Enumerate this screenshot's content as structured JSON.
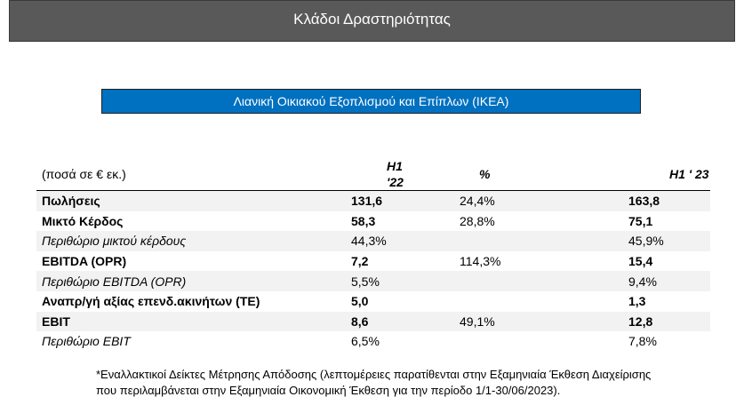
{
  "header": {
    "title": "Κλάδοι Δραστηριότητας"
  },
  "section": {
    "title": "Λιανική Οικιακού Εξοπλισμού και Επίπλων (IKEA)"
  },
  "table": {
    "columns": [
      "(ποσά σε € εκ.)",
      "H1 '22",
      "%",
      "H1 ' 23"
    ],
    "rows": [
      {
        "label": "Πωλήσεις",
        "h1_22": "131,6",
        "pct": "24,4%",
        "h1_23": "163,8"
      },
      {
        "label": "Μικτό Κέρδος",
        "h1_22": "58,3",
        "pct": "28,8%",
        "h1_23": "75,1"
      },
      {
        "label": "Περιθώριο μικτού κέρδους",
        "h1_22": "44,3%",
        "pct": "",
        "h1_23": "45,9%"
      },
      {
        "label": "EBITDA (OPR)",
        "h1_22": "7,2",
        "pct": "114,3%",
        "h1_23": "15,4"
      },
      {
        "label": "Περιθώριο EBITDA (OPR)",
        "h1_22": "5,5%",
        "pct": "",
        "h1_23": "9,4%"
      },
      {
        "label": "Αναπρ/γή αξίας επενδ.ακινήτων (ΤΕ)",
        "h1_22": "5,0",
        "pct": "",
        "h1_23": "1,3"
      },
      {
        "label": "EBIT",
        "h1_22": "8,6",
        "pct": "49,1%",
        "h1_23": "12,8"
      },
      {
        "label": "Περιθώριο EBIT",
        "h1_22": "6,5%",
        "pct": "",
        "h1_23": "7,8%"
      }
    ]
  },
  "footnote": {
    "line1": "*Εναλλακτικοί Δείκτες Μέτρησης Απόδοσης (λεπτομέρειες παρατίθενται στην Εξαμηνιαία Έκθεση Διαχείρισης",
    "line2": "που περιλαμβάνεται στην Εξαμηνιαία Οικονομική Έκθεση για την περίοδο 1/1-30/06/2023)."
  }
}
